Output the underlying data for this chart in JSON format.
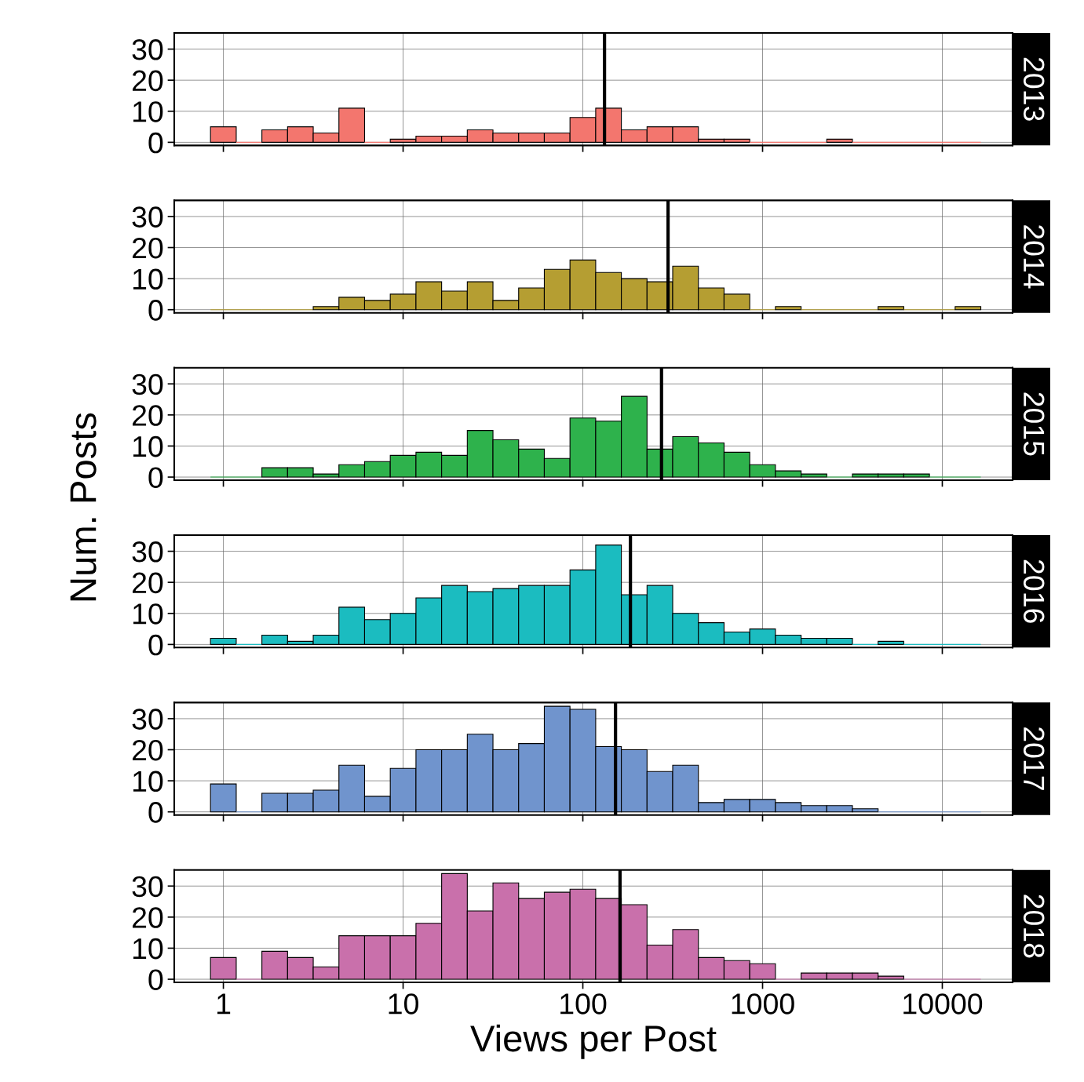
{
  "chart_data": [
    {
      "type": "histogram",
      "title": "2013",
      "color": "#f3766e",
      "bins": [
        0.848,
        1.179,
        1.638,
        2.276,
        3.162,
        4.394,
        6.105,
        8.483,
        11.79,
        16.38,
        22.76,
        31.62,
        43.94,
        61.05,
        84.83,
        117.9,
        163.8,
        227.6,
        316.2,
        439.4,
        610.5,
        848.3,
        1179,
        1638,
        2276,
        3162,
        4394,
        6105,
        8483,
        11788,
        16379
      ],
      "values": [
        5,
        0,
        4,
        5,
        3,
        11,
        0,
        1,
        2,
        2,
        4,
        3,
        3,
        3,
        8,
        11,
        4,
        5,
        5,
        1,
        1,
        0,
        0,
        0,
        1,
        0,
        0,
        0,
        0,
        0
      ],
      "ref_lines": [
        {
          "axis": "x",
          "value": 132,
          "color": "#000000"
        }
      ],
      "log": "x",
      "xlim": [
        0.533,
        24600
      ],
      "xticks": [
        1,
        10,
        100,
        1000,
        10000
      ],
      "ylim": [
        -1,
        35.2
      ],
      "yticks": [
        0,
        10,
        20,
        30
      ],
      "grid": true,
      "tick_labels": "y"
    },
    {
      "type": "histogram",
      "title": "2014",
      "color": "#b59e32",
      "bins": [
        0.848,
        1.179,
        1.638,
        2.276,
        3.162,
        4.394,
        6.105,
        8.483,
        11.79,
        16.38,
        22.76,
        31.62,
        43.94,
        61.05,
        84.83,
        117.9,
        163.8,
        227.6,
        316.2,
        439.4,
        610.5,
        848.3,
        1179,
        1638,
        2276,
        3162,
        4394,
        6105,
        8483,
        11788,
        16379
      ],
      "values": [
        0,
        0,
        0,
        0,
        1,
        4,
        3,
        5,
        9,
        6,
        9,
        3,
        7,
        13,
        16,
        12,
        10,
        9,
        14,
        7,
        5,
        0,
        1,
        0,
        0,
        0,
        1,
        0,
        0,
        1
      ],
      "ref_lines": [
        {
          "axis": "x",
          "value": 298,
          "color": "#000000"
        }
      ],
      "log": "x",
      "xlim": [
        0.533,
        24600
      ],
      "xticks": [
        1,
        10,
        100,
        1000,
        10000
      ],
      "ylim": [
        -1,
        35.2
      ],
      "yticks": [
        0,
        10,
        20,
        30
      ],
      "grid": true,
      "tick_labels": "y"
    },
    {
      "type": "histogram",
      "title": "2015",
      "color": "#2eb24c",
      "ylabel": "Num. Posts",
      "bins": [
        0.848,
        1.179,
        1.638,
        2.276,
        3.162,
        4.394,
        6.105,
        8.483,
        11.79,
        16.38,
        22.76,
        31.62,
        43.94,
        61.05,
        84.83,
        117.9,
        163.8,
        227.6,
        316.2,
        439.4,
        610.5,
        848.3,
        1179,
        1638,
        2276,
        3162,
        4394,
        6105,
        8483,
        11788,
        16379
      ],
      "values": [
        0,
        0,
        3,
        3,
        1,
        4,
        5,
        7,
        8,
        7,
        15,
        12,
        9,
        6,
        19,
        18,
        26,
        9,
        13,
        11,
        8,
        4,
        2,
        1,
        0,
        1,
        1,
        1,
        0,
        0
      ],
      "ref_lines": [
        {
          "axis": "x",
          "value": 274,
          "color": "#000000"
        }
      ],
      "log": "x",
      "xlim": [
        0.533,
        24600
      ],
      "xticks": [
        1,
        10,
        100,
        1000,
        10000
      ],
      "ylim": [
        -1,
        35.2
      ],
      "yticks": [
        0,
        10,
        20,
        30
      ],
      "grid": true,
      "tick_labels": "y"
    },
    {
      "type": "histogram",
      "title": "2016",
      "color": "#1bbcc0",
      "bins": [
        0.848,
        1.179,
        1.638,
        2.276,
        3.162,
        4.394,
        6.105,
        8.483,
        11.79,
        16.38,
        22.76,
        31.62,
        43.94,
        61.05,
        84.83,
        117.9,
        163.8,
        227.6,
        316.2,
        439.4,
        610.5,
        848.3,
        1179,
        1638,
        2276,
        3162,
        4394,
        6105,
        8483,
        11788,
        16379
      ],
      "values": [
        2,
        0,
        3,
        1,
        3,
        12,
        8,
        10,
        15,
        19,
        17,
        18,
        19,
        19,
        24,
        32,
        16,
        19,
        10,
        7,
        4,
        5,
        3,
        2,
        2,
        0,
        1,
        0,
        0,
        0
      ],
      "ref_lines": [
        {
          "axis": "x",
          "value": 184,
          "color": "#000000"
        }
      ],
      "log": "x",
      "xlim": [
        0.533,
        24600
      ],
      "xticks": [
        1,
        10,
        100,
        1000,
        10000
      ],
      "ylim": [
        -1,
        35.2
      ],
      "yticks": [
        0,
        10,
        20,
        30
      ],
      "grid": true,
      "tick_labels": "y"
    },
    {
      "type": "histogram",
      "title": "2017",
      "color": "#7094cd",
      "bins": [
        0.848,
        1.179,
        1.638,
        2.276,
        3.162,
        4.394,
        6.105,
        8.483,
        11.79,
        16.38,
        22.76,
        31.62,
        43.94,
        61.05,
        84.83,
        117.9,
        163.8,
        227.6,
        316.2,
        439.4,
        610.5,
        848.3,
        1179,
        1638,
        2276,
        3162,
        4394,
        6105,
        8483,
        11788,
        16379
      ],
      "values": [
        9,
        0,
        6,
        6,
        7,
        15,
        5,
        14,
        20,
        20,
        25,
        20,
        22,
        34,
        33,
        21,
        20,
        13,
        15,
        3,
        4,
        4,
        3,
        2,
        2,
        1,
        0,
        0,
        0,
        0
      ],
      "ref_lines": [
        {
          "axis": "x",
          "value": 152,
          "color": "#000000"
        }
      ],
      "log": "x",
      "xlim": [
        0.533,
        24600
      ],
      "xticks": [
        1,
        10,
        100,
        1000,
        10000
      ],
      "ylim": [
        -1,
        35.2
      ],
      "yticks": [
        0,
        10,
        20,
        30
      ],
      "grid": true,
      "tick_labels": "y"
    },
    {
      "type": "histogram",
      "title": "2018",
      "color": "#c970ab",
      "xlabel": "Views per Post",
      "bins": [
        0.848,
        1.179,
        1.638,
        2.276,
        3.162,
        4.394,
        6.105,
        8.483,
        11.79,
        16.38,
        22.76,
        31.62,
        43.94,
        61.05,
        84.83,
        117.9,
        163.8,
        227.6,
        316.2,
        439.4,
        610.5,
        848.3,
        1179,
        1638,
        2276,
        3162,
        4394,
        6105,
        8483,
        11788,
        16379
      ],
      "values": [
        7,
        0,
        9,
        7,
        4,
        14,
        14,
        14,
        18,
        34,
        22,
        31,
        26,
        28,
        29,
        26,
        24,
        11,
        16,
        7,
        6,
        5,
        0,
        2,
        2,
        2,
        1,
        0,
        0,
        0
      ],
      "ref_lines": [
        {
          "axis": "x",
          "value": 161,
          "color": "#000000"
        }
      ],
      "log": "x",
      "xlim": [
        0.533,
        24600
      ],
      "xticks": [
        1,
        10,
        100,
        1000,
        10000
      ],
      "ylim": [
        -1,
        35.2
      ],
      "yticks": [
        0,
        10,
        20,
        30
      ],
      "grid": true
    }
  ]
}
